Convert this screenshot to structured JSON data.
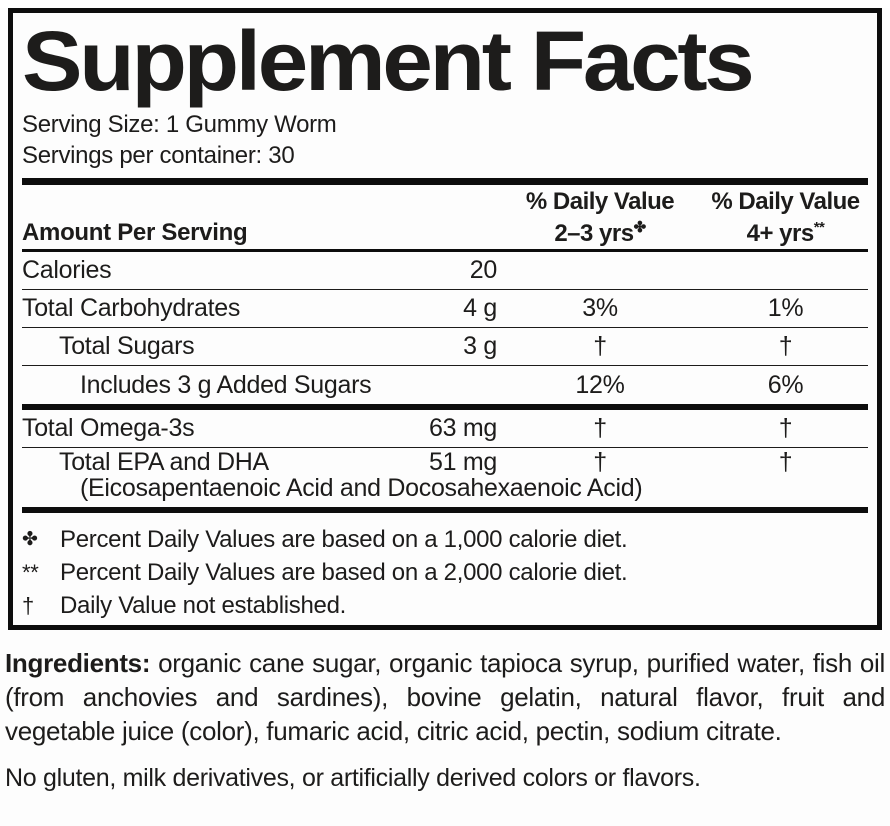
{
  "panel": {
    "title": "Supplement Facts",
    "serving_size": "Serving Size: 1 Gummy Worm",
    "servings_per_container": "Servings per container: 30",
    "header": {
      "amount": "Amount Per Serving",
      "dv1": {
        "line1": "% Daily Value",
        "line2": "2–3 yrs",
        "sup": "✤"
      },
      "dv2": {
        "line1": "% Daily Value",
        "line2": "4+ yrs",
        "sup": "**"
      }
    },
    "rows": [
      {
        "label": "Calories",
        "amount": "20",
        "dv1": "",
        "dv2": ""
      },
      {
        "label": "Total Carbohydrates",
        "amount": "4 g",
        "dv1": "3%",
        "dv2": "1%"
      },
      {
        "label": "Total Sugars",
        "amount": "3 g",
        "dv1": "†",
        "dv2": "†"
      },
      {
        "label": "Includes 3 g Added Sugars",
        "amount": "",
        "dv1": "12%",
        "dv2": "6%"
      },
      {
        "label": "Total Omega-3s",
        "amount": "63 mg",
        "dv1": "†",
        "dv2": "†"
      },
      {
        "label": "Total EPA and DHA",
        "amount": "51 mg",
        "dv1": "†",
        "dv2": "†",
        "subnote": "(Eicosapentaenoic Acid and Docosahexaenoic Acid)"
      }
    ],
    "footnotes": [
      {
        "symbol": "✤",
        "text": "Percent Daily Values are based on a 1,000 calorie diet."
      },
      {
        "symbol": "**",
        "text": "Percent Daily Values are based on a 2,000 calorie diet."
      },
      {
        "symbol": "†",
        "text": "Daily Value not established."
      }
    ]
  },
  "ingredients": {
    "lead": "Ingredients:",
    "text": " organic cane sugar, organic tapioca syrup, purified water, fish oil (from anchovies and sardines), bovine gelatin, natural flavor, fruit and vegetable juice (color), fumaric acid, citric acid, pectin, sodium citrate.",
    "note": "No gluten, milk derivatives, or artificially derived colors or flavors."
  },
  "colors": {
    "text": "#1d1c1b",
    "line": "#0d0d0d",
    "background": "#ffffff"
  }
}
